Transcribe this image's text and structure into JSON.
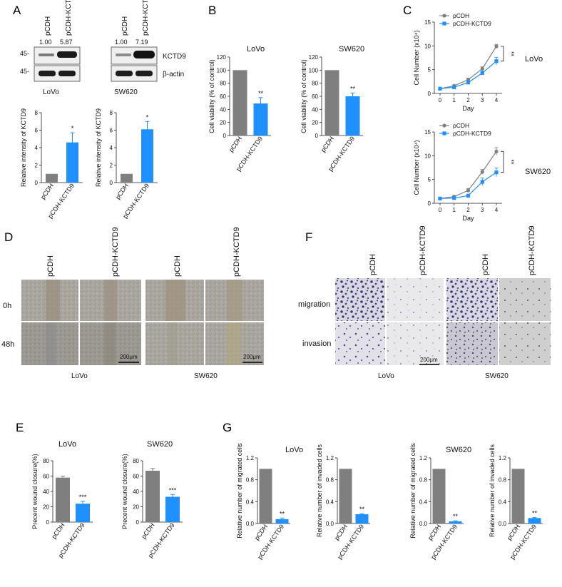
{
  "panels": {
    "A": {
      "letter": "A",
      "blots": [
        {
          "cell_line": "LoVo",
          "lanes": [
            "pCDH",
            "pCDH-KCTD9"
          ],
          "ratios": [
            "1.00",
            "5.87"
          ],
          "marker_top": "45-",
          "marker_bottom": "45-"
        },
        {
          "cell_line": "SW620",
          "lanes": [
            "pCDH",
            "pCDH-KCTD9"
          ],
          "ratios": [
            "1.00",
            "7.19"
          ],
          "protein_top": "KCTD9",
          "protein_bottom": "β-actin"
        }
      ]
    },
    "B": {
      "letter": "B"
    },
    "C": {
      "letter": "C"
    },
    "D": {
      "letter": "D",
      "columns": [
        "pCDH",
        "pCDH-KCTD9",
        "pCDH",
        "pCDH-KCTD9"
      ],
      "rows": [
        "0h",
        "48h"
      ],
      "cell_lines": [
        "LoVo",
        "SW620"
      ],
      "scale_bar": "200μm"
    },
    "E": {
      "letter": "E"
    },
    "F": {
      "letter": "F",
      "columns": [
        "pCDH",
        "pCDH-KCTD9",
        "pCDH",
        "pCDH-KCTD9"
      ],
      "rows": [
        "migration",
        "invasion"
      ],
      "cell_lines": [
        "LoVo",
        "SW620"
      ],
      "scale_bar": "200μm"
    },
    "G": {
      "letter": "G",
      "group_titles": [
        "LoVo",
        "SW620"
      ]
    }
  },
  "chart_data": [
    {
      "id": "A-lovo",
      "type": "bar",
      "categories": [
        "pCDH",
        "pCDH-KCTD9"
      ],
      "values": [
        1,
        4.6
      ],
      "errors": [
        0,
        1.1
      ],
      "ylabel": "Relative intensity of KCTD9",
      "ylim": [
        0,
        8
      ],
      "yticks": [
        "0",
        "2",
        "4",
        "6",
        "8"
      ],
      "significance": [
        "",
        "*"
      ],
      "colors": [
        "#7f7f7f",
        "#1e90ff"
      ]
    },
    {
      "id": "A-sw620",
      "type": "bar",
      "categories": [
        "pCDH",
        "pCDH-KCTD9"
      ],
      "values": [
        1,
        6.1
      ],
      "errors": [
        0,
        0.9
      ],
      "ylabel": "Relative intensity of KCTD9",
      "ylim": [
        0,
        8
      ],
      "yticks": [
        "0",
        "2",
        "4",
        "6",
        "8"
      ],
      "significance": [
        "",
        "*"
      ],
      "colors": [
        "#7f7f7f",
        "#1e90ff"
      ]
    },
    {
      "id": "B-lovo",
      "type": "bar",
      "title": "LoVo",
      "categories": [
        "pCDH",
        "pCDH-KCTD9"
      ],
      "values": [
        100,
        49
      ],
      "errors": [
        0,
        9
      ],
      "ylabel": "Cell viability (% of control)",
      "ylim": [
        0,
        120
      ],
      "yticks": [
        "0",
        "20",
        "40",
        "60",
        "80",
        "100",
        "120"
      ],
      "significance": [
        "",
        "**"
      ],
      "colors": [
        "#7f7f7f",
        "#1e90ff"
      ]
    },
    {
      "id": "B-sw620",
      "type": "bar",
      "title": "SW620",
      "categories": [
        "pCDH",
        "pCDH-KCTD9"
      ],
      "values": [
        100,
        60
      ],
      "errors": [
        0,
        5
      ],
      "ylabel": "Cell viability (% of control)",
      "ylim": [
        0,
        120
      ],
      "yticks": [
        "0",
        "20",
        "40",
        "60",
        "80",
        "100",
        "120"
      ],
      "significance": [
        "",
        "**"
      ],
      "colors": [
        "#7f7f7f",
        "#1e90ff"
      ]
    },
    {
      "id": "C-lovo",
      "type": "line",
      "side_label": "LoVo",
      "x": [
        0,
        1,
        2,
        3,
        4
      ],
      "xticks": [
        "0",
        "1",
        "2",
        "3",
        "4"
      ],
      "xlabel": "Day",
      "ylabel": "Cell Number (x10⁴)",
      "ylim": [
        0,
        15
      ],
      "yticks": [
        "0",
        "5",
        "10",
        "15"
      ],
      "series": [
        {
          "name": "pCDH",
          "values": [
            1.0,
            1.6,
            2.9,
            5.2,
            9.9
          ],
          "errors": [
            0.2,
            0.2,
            0.3,
            0.4,
            0.4
          ],
          "color": "#7f7f7f",
          "marker": "circle"
        },
        {
          "name": "pCDH-KCTD9",
          "values": [
            1.0,
            1.3,
            2.3,
            4.3,
            6.8
          ],
          "errors": [
            0.2,
            0.2,
            0.3,
            0.4,
            0.8
          ],
          "color": "#1e90ff",
          "marker": "square"
        }
      ],
      "significance": "**"
    },
    {
      "id": "C-sw620",
      "type": "line",
      "side_label": "SW620",
      "x": [
        0,
        1,
        2,
        3,
        4
      ],
      "xticks": [
        "0",
        "1",
        "2",
        "3",
        "4"
      ],
      "xlabel": "Day",
      "ylabel": "Cell Number (x10⁴)",
      "ylim": [
        0,
        15
      ],
      "yticks": [
        "0",
        "5",
        "10",
        "15"
      ],
      "series": [
        {
          "name": "pCDH",
          "values": [
            1.0,
            1.4,
            2.7,
            6.6,
            10.9
          ],
          "errors": [
            0.2,
            0.2,
            0.4,
            0.5,
            0.8
          ],
          "color": "#7f7f7f",
          "marker": "circle"
        },
        {
          "name": "pCDH-KCTD9",
          "values": [
            1.0,
            1.1,
            1.6,
            4.5,
            6.5
          ],
          "errors": [
            0.2,
            0.2,
            0.3,
            0.8,
            0.9
          ],
          "color": "#1e90ff",
          "marker": "square"
        }
      ],
      "significance": "**"
    },
    {
      "id": "E-lovo",
      "type": "bar",
      "title": "LoVo",
      "categories": [
        "pCDH",
        "pCDH-KCTD9"
      ],
      "values": [
        58,
        24
      ],
      "errors": [
        2,
        3
      ],
      "ylabel": "Precent wound closure(%)",
      "ylim": [
        0,
        80
      ],
      "yticks": [
        "0",
        "20",
        "40",
        "60",
        "80"
      ],
      "significance": [
        "",
        "***"
      ],
      "colors": [
        "#7f7f7f",
        "#1e90ff"
      ]
    },
    {
      "id": "E-sw620",
      "type": "bar",
      "title": "SW620",
      "categories": [
        "pCDH",
        "pCDH-KCTD9"
      ],
      "values": [
        67,
        33
      ],
      "errors": [
        3,
        3
      ],
      "ylabel": "Precent wound closure(%)",
      "ylim": [
        0,
        80
      ],
      "yticks": [
        "0",
        "20",
        "40",
        "60",
        "80"
      ],
      "significance": [
        "",
        "***"
      ],
      "colors": [
        "#7f7f7f",
        "#1e90ff"
      ]
    },
    {
      "id": "G-lovo-mig",
      "type": "bar",
      "categories": [
        "pCDH",
        "pCDH-KCTD9"
      ],
      "values": [
        1.0,
        0.08
      ],
      "errors": [
        0,
        0.02
      ],
      "ylabel": "Relative number of migrated cells",
      "ylim": [
        0,
        1.2
      ],
      "yticks": [
        "0.0",
        "0.4",
        "0.8",
        "1.2"
      ],
      "significance": [
        "",
        "**"
      ],
      "colors": [
        "#7f7f7f",
        "#1e90ff"
      ]
    },
    {
      "id": "G-lovo-inv",
      "type": "bar",
      "categories": [
        "pCDH",
        "pCDH-KCTD9"
      ],
      "values": [
        1.0,
        0.17
      ],
      "errors": [
        0,
        0.01
      ],
      "ylabel": "Relative number of invaded cells",
      "ylim": [
        0,
        1.2
      ],
      "yticks": [
        "0.0",
        "0.4",
        "0.8",
        "1.2"
      ],
      "significance": [
        "",
        "**"
      ],
      "colors": [
        "#7f7f7f",
        "#1e90ff"
      ]
    },
    {
      "id": "G-sw620-mig",
      "type": "bar",
      "categories": [
        "pCDH",
        "pCDH-KCTD9"
      ],
      "values": [
        1.0,
        0.04
      ],
      "errors": [
        0,
        0.01
      ],
      "ylabel": "Relative number of migrated cells",
      "ylim": [
        0,
        1.2
      ],
      "yticks": [
        "0.0",
        "0.4",
        "0.8",
        "1.2"
      ],
      "significance": [
        "",
        "**"
      ],
      "colors": [
        "#7f7f7f",
        "#1e90ff"
      ]
    },
    {
      "id": "G-sw620-inv",
      "type": "bar",
      "categories": [
        "pCDH",
        "pCDH-KCTD9"
      ],
      "values": [
        1.0,
        0.1
      ],
      "errors": [
        0,
        0.01
      ],
      "ylabel": "Relative number of invaded cells",
      "ylim": [
        0,
        1.2
      ],
      "yticks": [
        "0.0",
        "0.4",
        "0.8",
        "1.2"
      ],
      "significance": [
        "",
        "**"
      ],
      "colors": [
        "#7f7f7f",
        "#1e90ff"
      ]
    }
  ]
}
